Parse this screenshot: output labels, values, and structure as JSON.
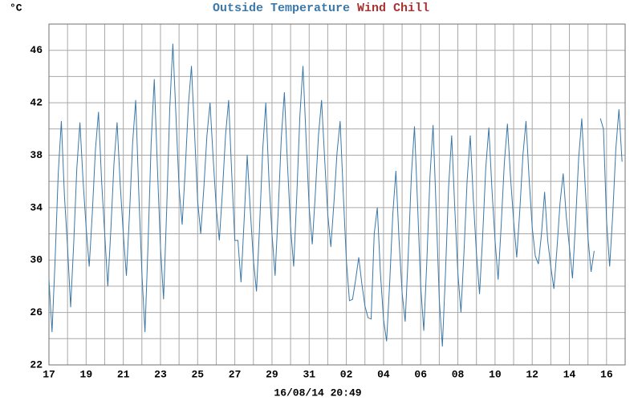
{
  "chart_data": {
    "type": "line",
    "y_unit": "°C",
    "timestamp": "16/08/14 20:49",
    "categories": [
      "17",
      null,
      null,
      null,
      null,
      null,
      null,
      null,
      null,
      null,
      null,
      null,
      "19",
      null,
      null,
      null,
      null,
      null,
      null,
      null,
      null,
      null,
      null,
      null,
      "21",
      null,
      null,
      null,
      null,
      null,
      null,
      null,
      null,
      null,
      null,
      null,
      "23",
      null,
      null,
      null,
      null,
      null,
      null,
      null,
      null,
      null,
      null,
      null,
      "25",
      null,
      null,
      null,
      null,
      null,
      null,
      null,
      null,
      null,
      null,
      null,
      "27",
      null,
      null,
      null,
      null,
      null,
      null,
      null,
      null,
      null,
      null,
      null,
      "29",
      null,
      null,
      null,
      null,
      null,
      null,
      null,
      null,
      null,
      null,
      null,
      "31",
      null,
      null,
      null,
      null,
      null,
      null,
      null,
      null,
      null,
      null,
      null,
      "02",
      null,
      null,
      null,
      null,
      null,
      null,
      null,
      null,
      null,
      null,
      null,
      "04",
      null,
      null,
      null,
      null,
      null,
      null,
      null,
      null,
      null,
      null,
      null,
      "06",
      null,
      null,
      null,
      null,
      null,
      null,
      null,
      null,
      null,
      null,
      null,
      "08",
      null,
      null,
      null,
      null,
      null,
      null,
      null,
      null,
      null,
      null,
      null,
      "10",
      null,
      null,
      null,
      null,
      null,
      null,
      null,
      null,
      null,
      null,
      null,
      "12",
      null,
      null,
      null,
      null,
      null,
      null,
      null,
      null,
      null,
      null,
      null,
      "14",
      null,
      null,
      null,
      null,
      null,
      null,
      null,
      null,
      null,
      null,
      null,
      "16",
      null,
      null,
      null,
      null,
      null
    ],
    "series": [
      {
        "name": "Outside Temperature",
        "color": "#3b78a8",
        "values": [
          28.5,
          24.5,
          30.1,
          36.6,
          40.6,
          34.9,
          31,
          26.4,
          31.3,
          37,
          40.5,
          36.1,
          32.5,
          29.5,
          33.6,
          38.4,
          41.3,
          36,
          32,
          28,
          32.4,
          37.4,
          40.5,
          35.8,
          32,
          28.8,
          33.5,
          38.9,
          42.2,
          35.1,
          29,
          24.5,
          31.3,
          39,
          43.8,
          37.1,
          31,
          27,
          33.8,
          41.6,
          46.5,
          41,
          35.5,
          32.7,
          36.9,
          41.8,
          44.8,
          39.7,
          34.5,
          32,
          35.5,
          39.5,
          42,
          37.8,
          34,
          31.5,
          35.2,
          39.5,
          42.2,
          36.6,
          31.5,
          31.5,
          28.3,
          33,
          38,
          33.8,
          30,
          27.6,
          32.6,
          38.4,
          42,
          36.2,
          32,
          28.8,
          33.7,
          39.3,
          42.8,
          37.3,
          32.5,
          29.5,
          34.9,
          41,
          44.8,
          39.3,
          34,
          31.2,
          35.1,
          39.5,
          42.2,
          37.7,
          33.5,
          31,
          34.4,
          38.2,
          40.6,
          35.1,
          30,
          26.9,
          27,
          28.5,
          30.2,
          28.2,
          26.5,
          25.6,
          25.5,
          32,
          34,
          29,
          25.5,
          23.8,
          28.3,
          33.5,
          36.8,
          31.6,
          27.5,
          25.3,
          30.5,
          36.5,
          40.2,
          34.2,
          28,
          24.6,
          30,
          36.4,
          40.3,
          33.8,
          27,
          23.4,
          29,
          35.5,
          39.5,
          34,
          29,
          26,
          30.7,
          36.1,
          39.5,
          34.6,
          30.5,
          27.4,
          31.8,
          37,
          40.1,
          35.4,
          31.5,
          28.5,
          32.7,
          37.4,
          40.4,
          36.3,
          33,
          30.2,
          33.8,
          38,
          40.6,
          36.2,
          32.5,
          30.3,
          29.7,
          32,
          35.2,
          31.5,
          29.5,
          27.8,
          30.9,
          34.4,
          36.6,
          33.3,
          31,
          28.6,
          32.9,
          37.8,
          40.8,
          36.1,
          31.7,
          29.1,
          30.7,
          null,
          40.8,
          40,
          33,
          29.5,
          33.5,
          38.5,
          41.5,
          37.5
        ]
      },
      {
        "name": "Wind Chill",
        "color": "#a83232"
      }
    ],
    "ylim": [
      22,
      48
    ],
    "yticks": [
      22,
      26,
      30,
      34,
      38,
      42,
      46
    ],
    "ygrid": [
      22,
      24,
      26,
      28,
      30,
      32,
      34,
      36,
      38,
      40,
      42,
      44,
      46,
      48
    ],
    "grid": true
  }
}
